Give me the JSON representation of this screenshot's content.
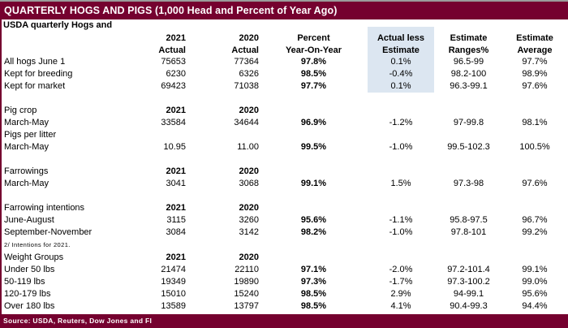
{
  "window": {
    "title": "QUARTERLY HOGS AND PIGS (1,000 Head and Percent of Year Ago)",
    "subtitle": "USDA quarterly Hogs and",
    "source": "Source: USDA, Reuters, Dow Jones and FI"
  },
  "colors": {
    "header_maroon": "#75012f",
    "highlight_blue": "#dce6f1",
    "text": "#000000"
  },
  "table": {
    "header_row_1": [
      "",
      "2021",
      "2020",
      "Percent",
      "Actual less",
      "Estimate",
      "Estimate"
    ],
    "header_row_2": [
      "",
      "Actual",
      "Actual",
      "Year-On-Year",
      "Estimate",
      "Ranges%",
      "Average"
    ],
    "rows": [
      {
        "type": "data",
        "label": "All hogs June 1",
        "values": [
          "75653",
          "77364",
          "97.8%",
          "0.1%",
          "96.5-99",
          "97.7%"
        ]
      },
      {
        "type": "data",
        "label": "Kept for breeding",
        "values": [
          "6230",
          "6326",
          "98.5%",
          "-0.4%",
          "98.2-100",
          "98.9%"
        ]
      },
      {
        "type": "data",
        "label": "Kept for market",
        "values": [
          "69423",
          "71038",
          "97.7%",
          "0.1%",
          "96.3-99.1",
          "97.6%"
        ]
      },
      {
        "type": "blank",
        "label": "",
        "values": [
          "",
          "",
          "",
          "",
          "",
          ""
        ]
      },
      {
        "type": "section",
        "label": "Pig crop",
        "values": [
          "2021",
          "2020",
          "",
          "",
          "",
          ""
        ]
      },
      {
        "type": "data",
        "label": "March-May",
        "values": [
          "33584",
          "34644",
          "96.9%",
          "-1.2%",
          "97-99.8",
          "98.1%"
        ]
      },
      {
        "type": "data",
        "label": "Pigs per litter",
        "values": [
          "",
          "",
          "",
          "",
          "",
          ""
        ]
      },
      {
        "type": "data",
        "label": "March-May",
        "values": [
          "10.95",
          "11.00",
          "99.5%",
          "-1.0%",
          "99.5-102.3",
          "100.5%"
        ]
      },
      {
        "type": "blank",
        "label": "",
        "values": [
          "",
          "",
          "",
          "",
          "",
          ""
        ]
      },
      {
        "type": "section",
        "label": "Farrowings",
        "values": [
          "2021",
          "2020",
          "",
          "",
          "",
          ""
        ]
      },
      {
        "type": "data",
        "label": "March-May",
        "values": [
          "3041",
          "3068",
          "99.1%",
          "1.5%",
          "97.3-98",
          "97.6%"
        ]
      },
      {
        "type": "blank",
        "label": "",
        "values": [
          "",
          "",
          "",
          "",
          "",
          ""
        ]
      },
      {
        "type": "section",
        "label": "Farrowing intentions",
        "values": [
          "2021",
          "2020",
          "",
          "",
          "",
          ""
        ]
      },
      {
        "type": "data",
        "label": "June-August",
        "values": [
          "3115",
          "3260",
          "95.6%",
          "-1.1%",
          "95.8-97.5",
          "96.7%"
        ]
      },
      {
        "type": "data",
        "label": "September-November",
        "values": [
          "3084",
          "3142",
          "98.2%",
          "-1.0%",
          "97.8-101",
          "99.2%"
        ]
      },
      {
        "type": "note",
        "label": "2/ Intentions for 2021.",
        "values": [
          "",
          "",
          "",
          "",
          "",
          ""
        ]
      },
      {
        "type": "section",
        "label": "Weight Groups",
        "values": [
          "2021",
          "2020",
          "",
          "",
          "",
          ""
        ]
      },
      {
        "type": "data",
        "label": "Under 50 lbs",
        "values": [
          "21474",
          "22110",
          "97.1%",
          "-2.0%",
          "97.2-101.4",
          "99.1%"
        ]
      },
      {
        "type": "data",
        "label": "50-119 lbs",
        "values": [
          "19349",
          "19890",
          "97.3%",
          "-1.7%",
          "97.3-100.2",
          "99.0%"
        ]
      },
      {
        "type": "data",
        "label": "120-179 lbs",
        "values": [
          "15010",
          "15240",
          "98.5%",
          "2.9%",
          "94-99.1",
          "95.6%"
        ]
      },
      {
        "type": "data",
        "label": "Over 180 lbs",
        "values": [
          "13589",
          "13797",
          "98.5%",
          "4.1%",
          "90.4-99.3",
          "94.4%"
        ]
      }
    ]
  }
}
